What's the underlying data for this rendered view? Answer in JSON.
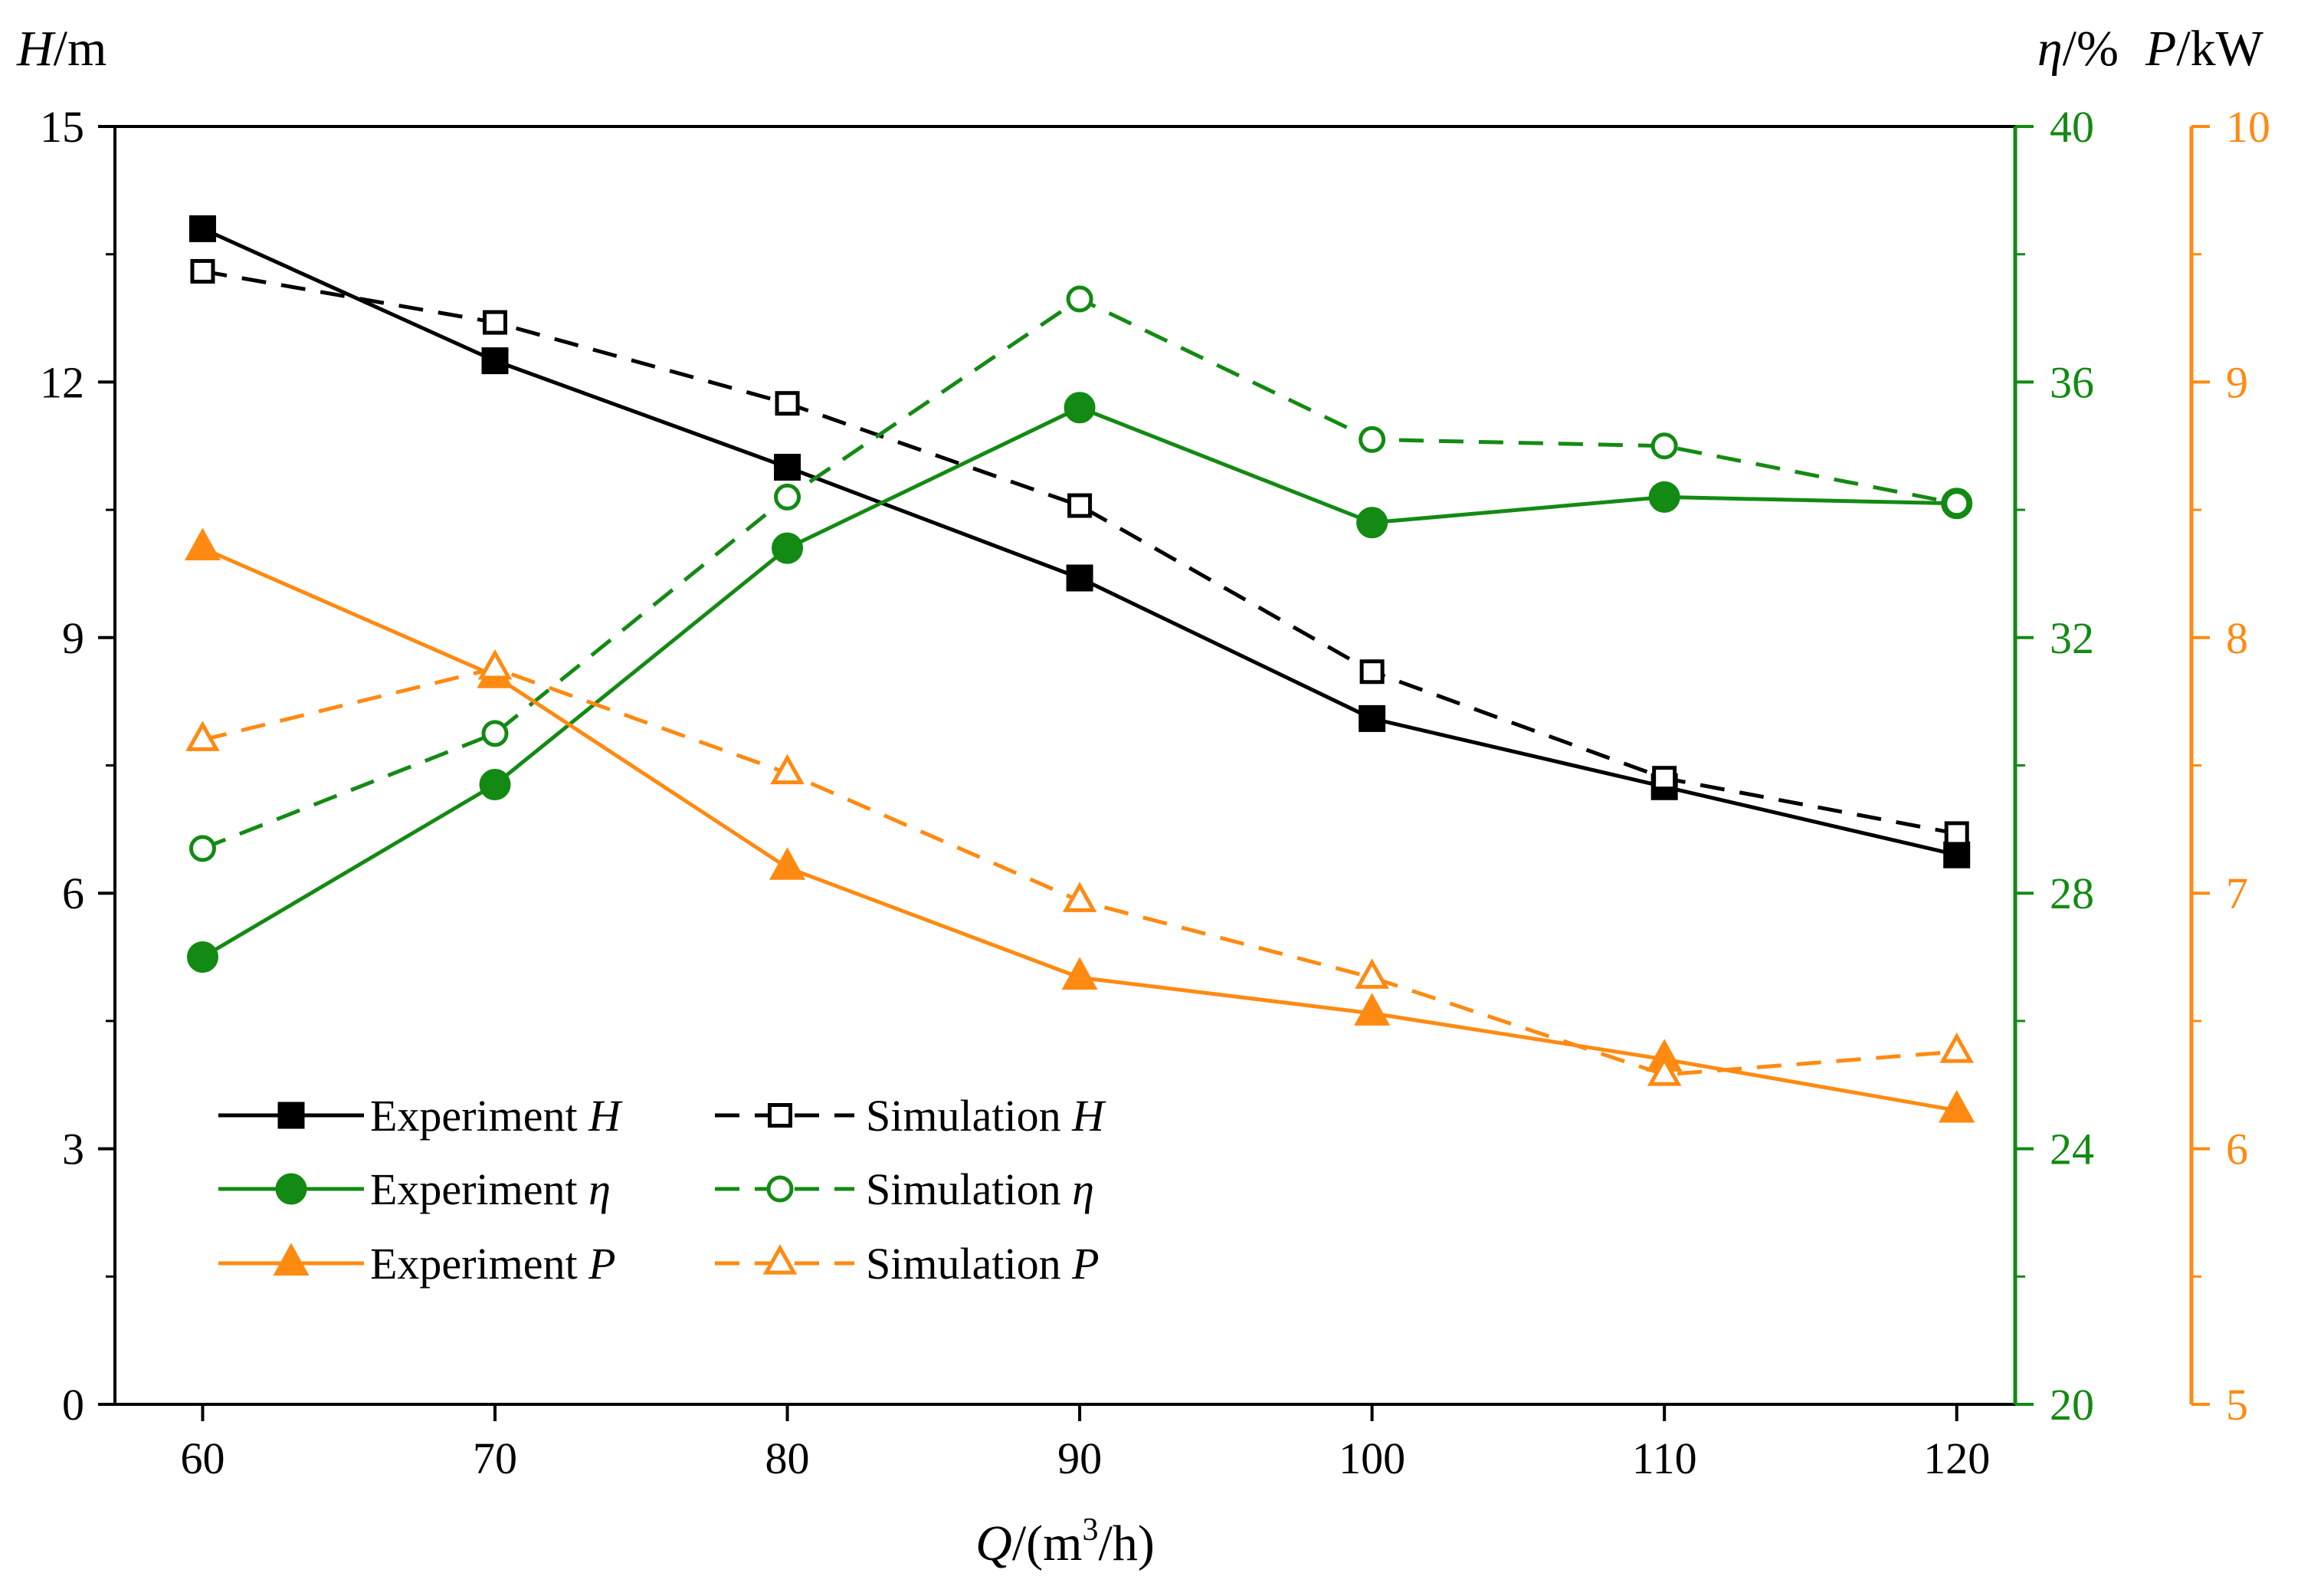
{
  "colors": {
    "H": "#000000",
    "eta": "#138a13",
    "P": "#ff8a12"
  },
  "chart_data": {
    "type": "line",
    "x": [
      60,
      70,
      80,
      90,
      100,
      110,
      120
    ],
    "xlabel": {
      "sym": "Q",
      "pre": "/(m",
      "sup": "3",
      "post": "/h)"
    },
    "xlim": [
      57,
      122
    ],
    "axes": {
      "H": {
        "sym": "H",
        "unit": "/m",
        "ylim": [
          0,
          15
        ],
        "ticks": [
          0,
          3,
          6,
          9,
          12,
          15
        ]
      },
      "eta": {
        "sym": "η",
        "unit": "/%",
        "ylim": [
          20,
          40
        ],
        "ticks": [
          20,
          24,
          28,
          32,
          36,
          40
        ]
      },
      "P": {
        "sym": "P",
        "unit": "/kW",
        "ylim": [
          5,
          10
        ],
        "ticks": [
          5,
          6,
          7,
          8,
          9,
          10
        ]
      }
    },
    "series": [
      {
        "id": "exp-H",
        "name": "Experiment",
        "sym": "H",
        "axis": "H",
        "style": "solid",
        "marker": "square-filled",
        "values": [
          13.8,
          12.25,
          11.0,
          9.7,
          8.05,
          7.25,
          6.45
        ]
      },
      {
        "id": "sim-H",
        "name": "Simulation",
        "sym": "H",
        "axis": "H",
        "style": "dashed",
        "marker": "square-open",
        "values": [
          13.3,
          12.7,
          11.75,
          10.55,
          8.6,
          7.35,
          6.7
        ]
      },
      {
        "id": "exp-eta",
        "name": "Experiment",
        "sym": "η",
        "axis": "eta",
        "style": "solid",
        "marker": "circle-filled",
        "values": [
          27.0,
          29.7,
          33.4,
          35.6,
          33.8,
          34.2,
          34.1
        ]
      },
      {
        "id": "sim-eta",
        "name": "Simulation",
        "sym": "η",
        "axis": "eta",
        "style": "dashed",
        "marker": "circle-open",
        "values": [
          28.7,
          30.5,
          34.2,
          37.3,
          35.1,
          35.0,
          34.1
        ]
      },
      {
        "id": "exp-P",
        "name": "Experiment",
        "sym": "P",
        "axis": "P",
        "style": "solid",
        "marker": "triangle-filled",
        "values": [
          8.35,
          7.85,
          7.1,
          6.67,
          6.53,
          6.35,
          6.15
        ]
      },
      {
        "id": "sim-P",
        "name": "Simulation",
        "sym": "P",
        "axis": "P",
        "style": "dashed",
        "marker": "triangle-open",
        "values": [
          7.6,
          7.88,
          7.47,
          6.97,
          6.67,
          6.29,
          6.38
        ]
      }
    ]
  }
}
